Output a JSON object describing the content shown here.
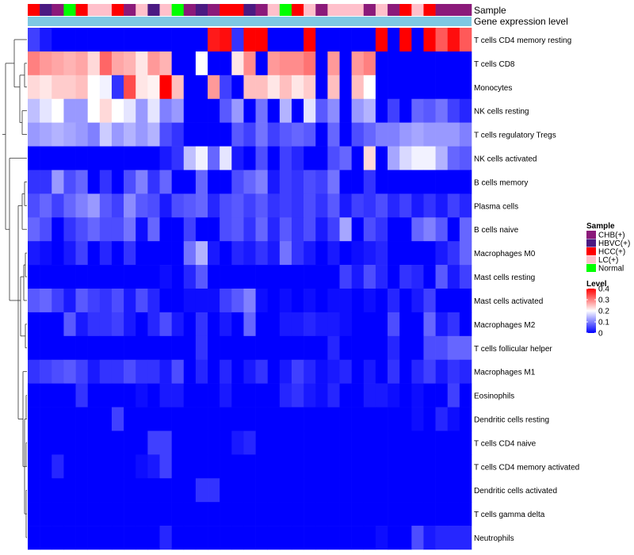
{
  "chart_data": {
    "type": "heatmap",
    "annotation_tracks": [
      "Sample",
      "Gene expression level"
    ],
    "legends": {
      "sample": {
        "title": "Sample",
        "entries": [
          {
            "label": "CHB(+)",
            "color": "#8B1A7A"
          },
          {
            "label": "HBVC(+)",
            "color": "#4B1A82"
          },
          {
            "label": "HCC(+)",
            "color": "#FF0000"
          },
          {
            "label": "LC(+)",
            "color": "#FFC0CB"
          },
          {
            "label": "Normal",
            "color": "#00FF00"
          }
        ]
      },
      "level": {
        "title": "Level",
        "ticks": [
          "0.4",
          "0.3",
          "0.2",
          "0.1",
          "0"
        ],
        "tick_values": [
          0.4,
          0.3,
          0.2,
          0.1,
          0
        ],
        "range": [
          0,
          0.4
        ],
        "colors": [
          "#0000FF",
          "#FFFFFF",
          "#FF0000"
        ]
      }
    },
    "gene_expression_level_color": "#7EC8E3",
    "sample_groups": [
      "HCC(+)",
      "HBVC(+)",
      "CHB(+)",
      "Normal",
      "HCC(+)",
      "LC(+)",
      "LC(+)",
      "HCC(+)",
      "CHB(+)",
      "LC(+)",
      "HBVC(+)",
      "LC(+)",
      "Normal",
      "CHB(+)",
      "HBVC(+)",
      "CHB(+)",
      "HCC(+)",
      "HCC(+)",
      "HBVC(+)",
      "CHB(+)",
      "LC(+)",
      "Normal",
      "HCC(+)",
      "LC(+)",
      "CHB(+)",
      "LC(+)",
      "LC(+)",
      "LC(+)",
      "CHB(+)",
      "LC(+)",
      "CHB(+)",
      "HCC(+)",
      "LC(+)",
      "HCC(+)",
      "CHB(+)",
      "CHB(+)",
      "CHB(+)"
    ],
    "rows": [
      "T cells CD4 memory resting",
      "T cells CD8",
      "Monocytes",
      "NK cells resting",
      "T cells regulatory  Tregs",
      "NK cells activated",
      "B cells memory",
      "Plasma cells",
      "B cells naive",
      "Macrophages M0",
      "Mast cells resting",
      "Mast cells activated",
      "Macrophages M2",
      "T cells follicular helper",
      "Macrophages M1",
      "Eosinophils",
      "Dendritic cells resting",
      "T cells CD4 naive",
      "T cells CD4 memory activated",
      "Dendritic cells activated",
      "T cells gamma delta",
      "Neutrophils"
    ],
    "values": [
      [
        0.05,
        0.02,
        0,
        0,
        0,
        0,
        0,
        0,
        0,
        0,
        0,
        0,
        0,
        0,
        0,
        0.38,
        0.39,
        0.04,
        0.4,
        0.4,
        0,
        0,
        0,
        0.4,
        0,
        0,
        0,
        0,
        0,
        0.4,
        0,
        0.4,
        0,
        0.4,
        0.33,
        0.39,
        0.33
      ],
      [
        0.3,
        0.28,
        0.27,
        0.26,
        0.27,
        0.23,
        0.32,
        0.27,
        0.26,
        0.22,
        0.28,
        0.26,
        0,
        0,
        0.2,
        0,
        0,
        0.22,
        0.29,
        0,
        0.28,
        0.29,
        0.29,
        0.31,
        0,
        0.28,
        0,
        0.28,
        0.3,
        0,
        0,
        0,
        0,
        0,
        0,
        0,
        0
      ],
      [
        0.23,
        0.22,
        0.24,
        0.24,
        0.25,
        0.2,
        0.19,
        0.04,
        0.34,
        0.22,
        0.21,
        0.4,
        0.25,
        0,
        0,
        0.28,
        0.05,
        0,
        0.25,
        0.25,
        0.22,
        0.25,
        0.22,
        0.24,
        0,
        0.25,
        0,
        0.25,
        0.2,
        0,
        0,
        0,
        0,
        0,
        0,
        0,
        0
      ],
      [
        0.15,
        0.18,
        0.2,
        0.12,
        0.12,
        0.2,
        0.23,
        0.2,
        0.18,
        0.12,
        0.18,
        0.1,
        0.12,
        0,
        0,
        0,
        0.07,
        0.12,
        0,
        0.09,
        0,
        0.14,
        0,
        0.18,
        0.07,
        0.11,
        0,
        0.12,
        0.14,
        0,
        0.05,
        0,
        0.08,
        0.07,
        0.09,
        0.05,
        0.03
      ],
      [
        0.12,
        0.13,
        0.14,
        0.13,
        0.12,
        0.1,
        0.16,
        0.12,
        0.14,
        0.12,
        0.14,
        0.06,
        0.04,
        0,
        0,
        0,
        0,
        0.07,
        0.05,
        0.09,
        0.05,
        0.07,
        0.08,
        0.07,
        0,
        0.08,
        0,
        0.06,
        0.08,
        0.1,
        0.1,
        0.12,
        0.13,
        0.12,
        0.12,
        0.12,
        0.1
      ],
      [
        0,
        0,
        0,
        0,
        0,
        0,
        0,
        0,
        0,
        0,
        0,
        0.02,
        0.04,
        0.15,
        0.19,
        0.08,
        0.18,
        0.02,
        0,
        0.06,
        0,
        0.05,
        0.03,
        0,
        0,
        0.06,
        0.08,
        0,
        0.23,
        0,
        0.13,
        0.17,
        0.19,
        0.19,
        0.14,
        0.08,
        0.07
      ],
      [
        0.04,
        0.04,
        0.12,
        0.06,
        0.08,
        0,
        0.04,
        0,
        0.06,
        0.1,
        0.04,
        0.08,
        0,
        0,
        0.08,
        0,
        0,
        0.06,
        0.08,
        0.1,
        0.02,
        0.05,
        0.04,
        0.06,
        0.05,
        0.09,
        0,
        0,
        0.04,
        0,
        0,
        0,
        0,
        0,
        0,
        0,
        0
      ],
      [
        0.06,
        0.08,
        0.05,
        0.08,
        0.1,
        0.12,
        0.07,
        0.05,
        0.11,
        0.07,
        0.06,
        0.02,
        0.06,
        0.07,
        0.08,
        0.03,
        0.06,
        0.07,
        0.05,
        0.07,
        0.04,
        0.05,
        0.04,
        0.06,
        0.04,
        0.07,
        0.02,
        0.05,
        0.04,
        0.06,
        0.03,
        0.05,
        0.02,
        0.04,
        0.02,
        0.05,
        0.03
      ],
      [
        0.08,
        0.06,
        0,
        0.04,
        0.06,
        0.08,
        0.06,
        0.06,
        0.09,
        0.01,
        0.08,
        0,
        0,
        0.05,
        0,
        0,
        0.06,
        0.07,
        0.04,
        0.08,
        0.03,
        0.07,
        0.04,
        0.06,
        0.02,
        0.05,
        0.13,
        0,
        0.06,
        0.04,
        0,
        0,
        0.08,
        0.1,
        0.07,
        0,
        0.08
      ],
      [
        0.02,
        0.01,
        0,
        0.02,
        0.05,
        0,
        0.03,
        0,
        0.04,
        0,
        0,
        0,
        0,
        0.09,
        0.14,
        0.02,
        0,
        0.03,
        0.02,
        0.04,
        0.02,
        0.09,
        0.04,
        0.02,
        0,
        0.02,
        0,
        0.01,
        0.02,
        0.03,
        0,
        0,
        0,
        0,
        0.02,
        0.04,
        0.08
      ],
      [
        0,
        0,
        0,
        0,
        0,
        0,
        0,
        0,
        0,
        0,
        0,
        0.01,
        0,
        0.03,
        0.07,
        0,
        0,
        0,
        0,
        0,
        0,
        0,
        0,
        0,
        0,
        0,
        0.05,
        0.02,
        0.06,
        0.03,
        0,
        0.04,
        0.03,
        0,
        0.07,
        0.02,
        0.05
      ],
      [
        0.07,
        0.08,
        0.05,
        0.02,
        0.07,
        0.05,
        0.04,
        0.06,
        0.02,
        0.06,
        0.03,
        0,
        0,
        0.01,
        0.01,
        0.01,
        0.05,
        0.07,
        0.1,
        0.01,
        0,
        0.01,
        0,
        0.01,
        0,
        0.01,
        0.01,
        0,
        0.01,
        0,
        0.03,
        0,
        0.02,
        0.05,
        0,
        0,
        0
      ],
      [
        0,
        0,
        0,
        0.07,
        0.02,
        0.04,
        0.04,
        0.05,
        0.02,
        0,
        0.03,
        0.06,
        0.02,
        0,
        0.04,
        0,
        0.02,
        0,
        0.08,
        0,
        0,
        0.02,
        0.02,
        0.03,
        0.02,
        0.02,
        0.01,
        0,
        0,
        0,
        0.06,
        0,
        0,
        0.08,
        0.02,
        0.04,
        0
      ],
      [
        0,
        0,
        0,
        0,
        0,
        0,
        0,
        0,
        0,
        0,
        0,
        0,
        0,
        0,
        0.04,
        0,
        0,
        0,
        0,
        0,
        0,
        0,
        0,
        0,
        0,
        0.03,
        0,
        0,
        0,
        0,
        0.03,
        0,
        0,
        0.06,
        0.06,
        0.08,
        0.08
      ],
      [
        0.04,
        0.05,
        0.06,
        0.07,
        0.05,
        0.02,
        0.04,
        0.04,
        0.06,
        0.04,
        0.04,
        0.02,
        0.06,
        0,
        0.03,
        0,
        0.03,
        0,
        0.02,
        0.04,
        0,
        0.02,
        0.05,
        0.03,
        0.01,
        0.02,
        0.03,
        0,
        0.02,
        0,
        0.04,
        0,
        0.03,
        0.05,
        0.02,
        0.04,
        0.03
      ],
      [
        0,
        0,
        0,
        0,
        0.04,
        0,
        0,
        0,
        0,
        0.01,
        0,
        0.02,
        0.02,
        0,
        0,
        0,
        0.02,
        0,
        0,
        0,
        0,
        0.03,
        0.04,
        0.02,
        0.01,
        0.03,
        0,
        0,
        0.02,
        0.02,
        0.01,
        0,
        0.01,
        0,
        0,
        0.05,
        0
      ],
      [
        0,
        0,
        0,
        0,
        0,
        0,
        0,
        0.05,
        0,
        0,
        0,
        0,
        0,
        0,
        0,
        0,
        0,
        0,
        0,
        0,
        0,
        0,
        0,
        0,
        0,
        0,
        0,
        0,
        0,
        0,
        0,
        0,
        0.01,
        0,
        0.03,
        0.01,
        0
      ],
      [
        0,
        0,
        0,
        0,
        0,
        0,
        0,
        0,
        0,
        0,
        0.05,
        0.05,
        0,
        0,
        0,
        0,
        0,
        0.02,
        0.03,
        0,
        0,
        0,
        0,
        0,
        0,
        0,
        0,
        0,
        0,
        0,
        0,
        0,
        0,
        0,
        0,
        0,
        0
      ],
      [
        0,
        0,
        0.03,
        0,
        0,
        0,
        0,
        0,
        0,
        0.01,
        0.02,
        0.05,
        0,
        0,
        0,
        0,
        0,
        0,
        0,
        0,
        0,
        0,
        0,
        0,
        0,
        0,
        0,
        0,
        0,
        0,
        0,
        0,
        0,
        0,
        0,
        0,
        0
      ],
      [
        0,
        0,
        0,
        0,
        0,
        0,
        0,
        0,
        0,
        0,
        0,
        0,
        0,
        0,
        0.04,
        0.04,
        0,
        0,
        0,
        0,
        0,
        0,
        0,
        0,
        0,
        0,
        0,
        0,
        0,
        0,
        0,
        0,
        0,
        0,
        0,
        0,
        0
      ],
      [
        0,
        0,
        0,
        0,
        0,
        0,
        0,
        0,
        0,
        0,
        0,
        0,
        0,
        0,
        0,
        0,
        0,
        0,
        0,
        0,
        0,
        0,
        0,
        0,
        0,
        0,
        0,
        0,
        0,
        0,
        0,
        0,
        0,
        0,
        0,
        0,
        0
      ],
      [
        0,
        0,
        0,
        0,
        0,
        0,
        0,
        0,
        0,
        0,
        0,
        0.03,
        0,
        0,
        0,
        0,
        0,
        0,
        0,
        0,
        0,
        0,
        0,
        0,
        0,
        0,
        0,
        0,
        0,
        0.01,
        0,
        0,
        0.06,
        0.02,
        0.03,
        0.03,
        0.03
      ]
    ]
  }
}
